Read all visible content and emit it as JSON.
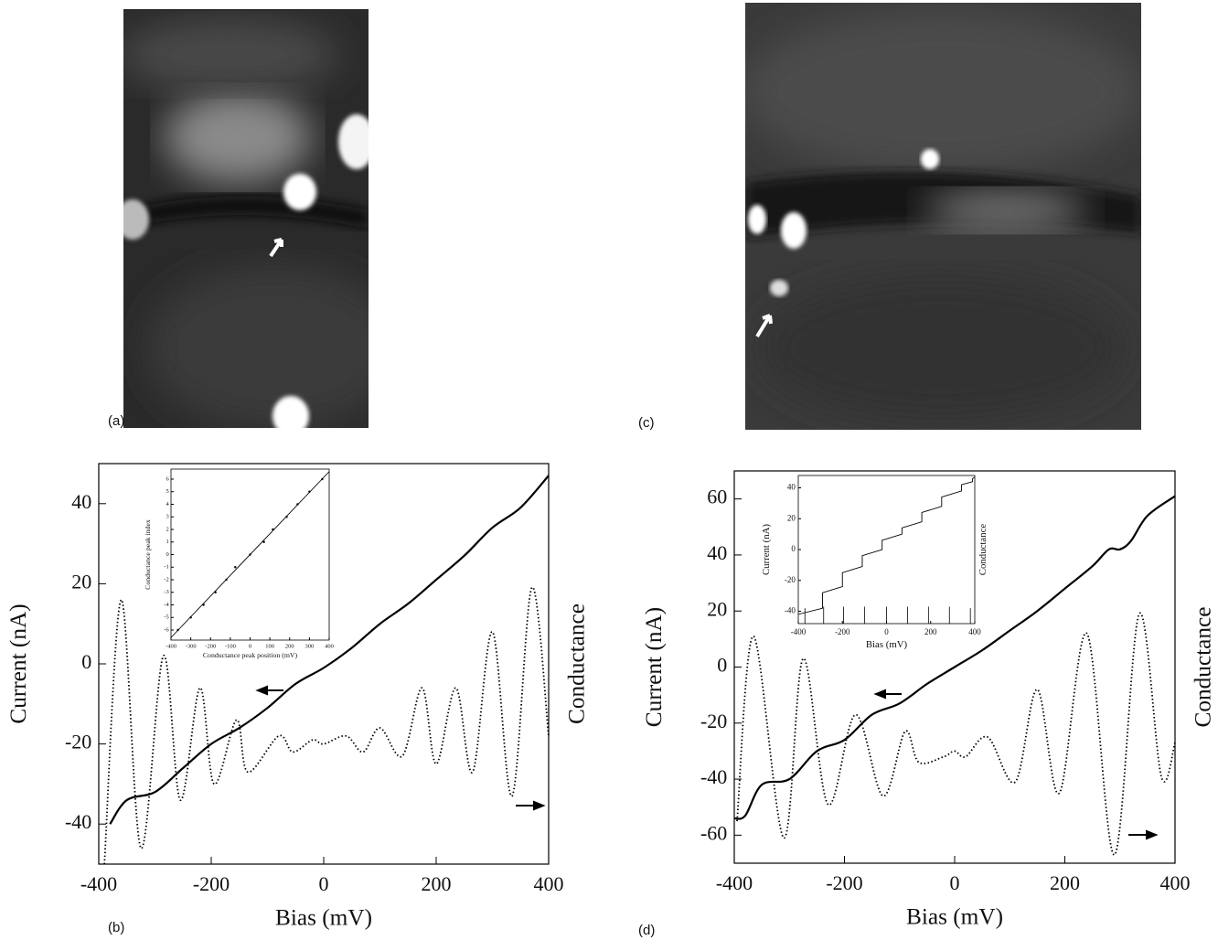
{
  "panel_labels": [
    "(a)",
    "(b)",
    "(c)",
    "(d)"
  ],
  "chart_data": [
    {
      "type": "line",
      "xlabel": "Bias (mV)",
      "ylabel": "Current (nA)",
      "y2label": "Conductance",
      "xlim": [
        -400,
        400
      ],
      "ylim": [
        -50,
        50
      ],
      "xticks": [
        -400,
        -200,
        0,
        200,
        400
      ],
      "yticks": [
        -40,
        -20,
        0,
        20,
        40
      ],
      "series": [
        {
          "style": "solid",
          "color": "#000000",
          "x": [
            -380,
            -350,
            -300,
            -250,
            -200,
            -150,
            -100,
            -50,
            0,
            50,
            100,
            150,
            200,
            250,
            300,
            350,
            400
          ],
          "values": [
            -40,
            -34,
            -32,
            -26,
            -20,
            -16,
            -11,
            -5,
            -1,
            4,
            10,
            15,
            21,
            27,
            34,
            39,
            47
          ]
        },
        {
          "style": "dotted",
          "color": "#000000",
          "x": [
            -390,
            -360,
            -325,
            -285,
            -255,
            -220,
            -195,
            -155,
            -135,
            -80,
            -55,
            -20,
            0,
            40,
            70,
            100,
            140,
            175,
            200,
            235,
            265,
            300,
            335,
            370,
            400
          ],
          "values": [
            -50,
            16,
            -46,
            2,
            -34,
            -6,
            -30,
            -14,
            -27,
            -18,
            -22,
            -19,
            -20,
            -18,
            -22,
            -16,
            -23,
            -6,
            -25,
            -6,
            -27,
            8,
            -33,
            19,
            -18
          ]
        }
      ]
    },
    {
      "type": "scatter",
      "xlabel": "Conductance peak position (mV)",
      "ylabel": "Conductance peak index",
      "xlim": [
        -400,
        400
      ],
      "ylim": [
        -6.8,
        6.8
      ],
      "xticks": [
        -400,
        -300,
        -200,
        -100,
        0,
        100,
        200,
        300,
        400
      ],
      "yticks": [
        -6,
        -5,
        -4,
        -3,
        -2,
        -1,
        0,
        1,
        2,
        3,
        4,
        5,
        6
      ],
      "series": [
        {
          "style": "points",
          "color": "#000000",
          "x": [
            -365,
            -300,
            -235,
            -175,
            -120,
            -75,
            0,
            70,
            115,
            185,
            240,
            300,
            365
          ],
          "values": [
            -6,
            -5,
            -4,
            -3,
            -2,
            -1,
            0,
            1,
            2,
            3,
            4,
            5,
            6
          ]
        },
        {
          "style": "solid",
          "color": "#000000",
          "x": [
            -400,
            400
          ],
          "values": [
            -6.6,
            6.6
          ]
        }
      ]
    },
    {
      "type": "line",
      "xlabel": "Bias (mV)",
      "ylabel": "Current (nA)",
      "y2label": "Conductance",
      "xlim": [
        -400,
        400
      ],
      "ylim": [
        -70,
        70
      ],
      "xticks": [
        -400,
        -200,
        0,
        200,
        400
      ],
      "yticks": [
        -60,
        -40,
        -20,
        0,
        20,
        40,
        60
      ],
      "series": [
        {
          "style": "solid",
          "color": "#000000",
          "x": [
            -400,
            -380,
            -350,
            -300,
            -250,
            -200,
            -150,
            -100,
            -50,
            0,
            50,
            100,
            150,
            200,
            250,
            280,
            300,
            320,
            350,
            400
          ],
          "values": [
            -54,
            -53,
            -42,
            -40,
            -30,
            -26,
            -17,
            -13,
            -6,
            0,
            6,
            13,
            20,
            28,
            36,
            42,
            42,
            45,
            54,
            61
          ]
        },
        {
          "style": "dotted",
          "color": "#000000",
          "x": [
            -395,
            -365,
            -310,
            -275,
            -230,
            -180,
            -130,
            -90,
            -65,
            -20,
            0,
            20,
            60,
            110,
            150,
            190,
            240,
            290,
            335,
            375,
            400
          ],
          "values": [
            -55,
            11,
            -61,
            3,
            -49,
            -17,
            -46,
            -23,
            -34,
            -32,
            -30,
            -32,
            -25,
            -41,
            -8,
            -45,
            12,
            -67,
            19,
            -39,
            -27
          ]
        }
      ]
    },
    {
      "type": "line",
      "xlabel": "Bias (mV)",
      "ylabel": "Current (nA)",
      "y2label": "Conductance",
      "xlim": [
        -400,
        400
      ],
      "ylim": [
        -48,
        48
      ],
      "xticks": [
        -400,
        -200,
        0,
        200,
        400
      ],
      "yticks": [
        -40,
        -20,
        0,
        20,
        40
      ],
      "series": [
        {
          "style": "solid",
          "color": "#000000",
          "x": [
            -400,
            -290,
            -290,
            -200,
            -200,
            -110,
            -110,
            -20,
            -20,
            70,
            70,
            160,
            160,
            250,
            250,
            340,
            340,
            390,
            390,
            400
          ],
          "values": [
            -42,
            -38,
            -28,
            -24,
            -15,
            -11,
            -4,
            0,
            6,
            10,
            14,
            18,
            24,
            28,
            34,
            38,
            42,
            44,
            46,
            47
          ]
        },
        {
          "style": "spikes",
          "color": "#000000",
          "x": [
            -370,
            -285,
            -195,
            -100,
            0,
            95,
            190,
            285,
            380
          ],
          "values": [
            -38,
            -37,
            -37,
            -37,
            -37,
            -37,
            -37,
            -37,
            -38
          ]
        }
      ]
    }
  ]
}
